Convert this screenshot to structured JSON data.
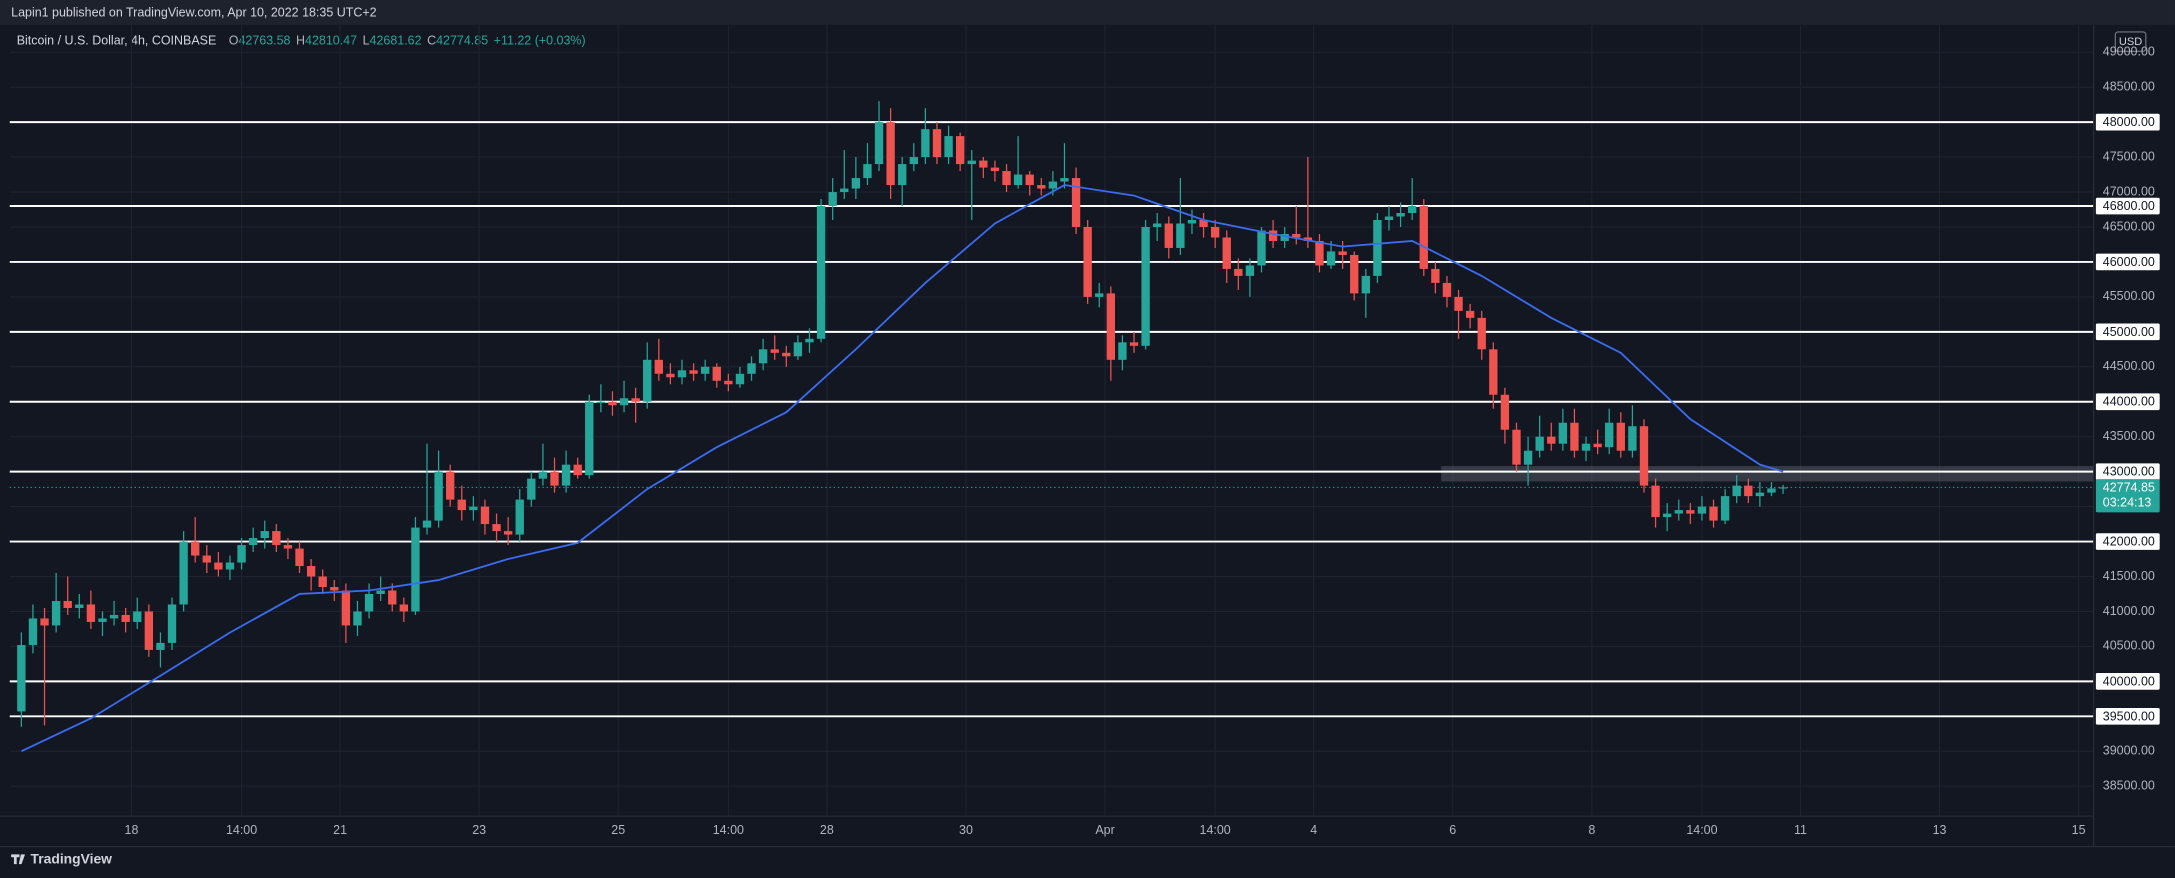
{
  "header": {
    "publisher": "Lapin1 published on TradingView.com, Apr 10, 2022 18:35 UTC+2",
    "symbol": "Bitcoin / U.S. Dollar, 4h, COINBASE",
    "change": "+11.22 (+0.03%)",
    "currency": "USD",
    "countdown": "03:24:13"
  },
  "footer": {
    "brand": "TradingView"
  },
  "chart_data": {
    "type": "candlestick",
    "x_start": "2022-03-16T10:00",
    "interval": "4h",
    "up_color": "#26a69a",
    "down_color": "#ef5350",
    "level_color": "#ffffff",
    "grid": true,
    "xlim": [
      "2022-03-16T06:00",
      "2022-04-15T05:00"
    ],
    "ylim": [
      38080,
      49390
    ],
    "xticks": [
      {
        "value": "2022-03-18",
        "label": "18"
      },
      {
        "value": "2022-03-19T14:00",
        "label": "14:00"
      },
      {
        "value": "2022-03-21",
        "label": "21"
      },
      {
        "value": "2022-03-23",
        "label": "23"
      },
      {
        "value": "2022-03-25",
        "label": "25"
      },
      {
        "value": "2022-03-26T14:00",
        "label": "14:00"
      },
      {
        "value": "2022-03-28",
        "label": "28"
      },
      {
        "value": "2022-03-30",
        "label": "30"
      },
      {
        "value": "2022-04-01",
        "label": "Apr"
      },
      {
        "value": "2022-04-02T14:00",
        "label": "14:00"
      },
      {
        "value": "2022-04-04",
        "label": "4"
      },
      {
        "value": "2022-04-06",
        "label": "6"
      },
      {
        "value": "2022-04-08",
        "label": "8"
      },
      {
        "value": "2022-04-09T14:00",
        "label": "14:00"
      },
      {
        "value": "2022-04-11",
        "label": "11"
      },
      {
        "value": "2022-04-13",
        "label": "13"
      },
      {
        "value": "2022-04-15",
        "label": "15"
      }
    ],
    "yticks": [
      {
        "value": 38500,
        "label": "38500.00"
      },
      {
        "value": 39000,
        "label": "39000.00"
      },
      {
        "value": 40500,
        "label": "40500.00"
      },
      {
        "value": 41000,
        "label": "41000.00"
      },
      {
        "value": 41500,
        "label": "41500.00"
      },
      {
        "value": 42500,
        "label": "42500.00"
      },
      {
        "value": 43500,
        "label": "43500.00"
      },
      {
        "value": 44500,
        "label": "44500.00"
      },
      {
        "value": 45500,
        "label": "45500.00"
      },
      {
        "value": 46500,
        "label": "46500.00"
      },
      {
        "value": 47000,
        "label": "47000.00"
      },
      {
        "value": 47500,
        "label": "47500.00"
      },
      {
        "value": 48500,
        "label": "48500.00"
      },
      {
        "value": 49000,
        "label": "49000.00"
      }
    ],
    "levels": [
      {
        "value": 48000,
        "label": "48000.00"
      },
      {
        "value": 46800,
        "label": "46800.00"
      },
      {
        "value": 46000,
        "label": "46000.00"
      },
      {
        "value": 45000,
        "label": "45000.00"
      },
      {
        "value": 44000,
        "label": "44000.00"
      },
      {
        "value": 43000,
        "label": "43000.00"
      },
      {
        "value": 42000,
        "label": "42000.00"
      },
      {
        "value": 40000,
        "label": "40000.00"
      },
      {
        "value": 39500,
        "label": "39500.00"
      }
    ],
    "zone": {
      "start": "2022-04-05T20:00",
      "top": 43080,
      "bottom": 42860
    },
    "ma": {
      "color": "#3b6cf2",
      "x": [
        "2022-03-16T10:00",
        "2022-03-17T10:00",
        "2022-03-18T10:00",
        "2022-03-19T10:00",
        "2022-03-20T10:00",
        "2022-03-21T10:00",
        "2022-03-22T10:00",
        "2022-03-23T10:00",
        "2022-03-24T10:00",
        "2022-03-25T10:00",
        "2022-03-26T10:00",
        "2022-03-27T10:00",
        "2022-03-28T10:00",
        "2022-03-29T10:00",
        "2022-03-30T10:00",
        "2022-03-31T10:00",
        "2022-04-01T10:00",
        "2022-04-02T10:00",
        "2022-04-03T10:00",
        "2022-04-04T10:00",
        "2022-04-05T10:00",
        "2022-04-06T10:00",
        "2022-04-07T10:00",
        "2022-04-08T10:00",
        "2022-04-09T10:00",
        "2022-04-10T10:00",
        "2022-04-10T18:00"
      ],
      "values": [
        39000,
        39470,
        40080,
        40700,
        41250,
        41300,
        41450,
        41750,
        41980,
        42750,
        43350,
        43850,
        44750,
        45700,
        46550,
        47100,
        46950,
        46600,
        46400,
        46220,
        46300,
        45800,
        45200,
        44700,
        43750,
        43100,
        43000
      ]
    },
    "candles": [
      [
        39570,
        40700,
        39350,
        40520
      ],
      [
        40520,
        41100,
        40400,
        40900
      ],
      [
        40900,
        41050,
        39370,
        40800
      ],
      [
        40800,
        41550,
        40700,
        41150
      ],
      [
        41150,
        41500,
        40950,
        41050
      ],
      [
        41050,
        41250,
        40900,
        41100
      ],
      [
        41100,
        41300,
        40750,
        40850
      ],
      [
        40850,
        41000,
        40650,
        40900
      ],
      [
        40900,
        41150,
        40800,
        40950
      ],
      [
        40950,
        41050,
        40700,
        40850
      ],
      [
        40850,
        41200,
        40750,
        41000
      ],
      [
        41000,
        41100,
        40350,
        40450
      ],
      [
        40450,
        40700,
        40200,
        40550
      ],
      [
        40550,
        41200,
        40450,
        41100
      ],
      [
        41100,
        42150,
        41000,
        42000
      ],
      [
        42000,
        42350,
        41700,
        41800
      ],
      [
        41800,
        41950,
        41550,
        41700
      ],
      [
        41700,
        41850,
        41500,
        41600
      ],
      [
        41600,
        41800,
        41450,
        41700
      ],
      [
        41700,
        42050,
        41600,
        41950
      ],
      [
        41950,
        42200,
        41850,
        42050
      ],
      [
        42050,
        42300,
        41900,
        42150
      ],
      [
        42150,
        42250,
        41850,
        41950
      ],
      [
        41950,
        42050,
        41750,
        41900
      ],
      [
        41900,
        42000,
        41550,
        41650
      ],
      [
        41650,
        41750,
        41300,
        41500
      ],
      [
        41500,
        41600,
        41250,
        41350
      ],
      [
        41350,
        41450,
        41150,
        41300
      ],
      [
        41300,
        41400,
        40550,
        40800
      ],
      [
        40800,
        41150,
        40650,
        41000
      ],
      [
        41000,
        41400,
        40900,
        41250
      ],
      [
        41250,
        41500,
        41150,
        41300
      ],
      [
        41300,
        41400,
        41000,
        41100
      ],
      [
        41100,
        41200,
        40850,
        41000
      ],
      [
        41000,
        42350,
        40950,
        42200
      ],
      [
        42200,
        43400,
        42100,
        42300
      ],
      [
        42300,
        43300,
        42200,
        43000
      ],
      [
        43000,
        43100,
        42500,
        42600
      ],
      [
        42600,
        42800,
        42300,
        42450
      ],
      [
        42450,
        42650,
        42300,
        42500
      ],
      [
        42500,
        42600,
        42100,
        42250
      ],
      [
        42250,
        42400,
        42000,
        42150
      ],
      [
        42150,
        42350,
        41950,
        42100
      ],
      [
        42100,
        42750,
        42000,
        42600
      ],
      [
        42600,
        43000,
        42500,
        42900
      ],
      [
        42900,
        43400,
        42800,
        43000
      ],
      [
        43000,
        43200,
        42700,
        42800
      ],
      [
        42800,
        43300,
        42700,
        43100
      ],
      [
        43100,
        43200,
        42900,
        42950
      ],
      [
        42950,
        44100,
        42900,
        44000
      ],
      [
        44000,
        44250,
        43850,
        44000
      ],
      [
        44000,
        44150,
        43800,
        43950
      ],
      [
        43950,
        44300,
        43850,
        44050
      ],
      [
        44050,
        44200,
        43700,
        44000
      ],
      [
        44000,
        44850,
        43900,
        44600
      ],
      [
        44600,
        44900,
        44300,
        44400
      ],
      [
        44400,
        44550,
        44250,
        44350
      ],
      [
        44350,
        44600,
        44250,
        44450
      ],
      [
        44450,
        44550,
        44300,
        44400
      ],
      [
        44400,
        44600,
        44300,
        44500
      ],
      [
        44500,
        44550,
        44200,
        44300
      ],
      [
        44300,
        44400,
        44150,
        44250
      ],
      [
        44250,
        44500,
        44200,
        44400
      ],
      [
        44400,
        44650,
        44300,
        44550
      ],
      [
        44550,
        44900,
        44450,
        44750
      ],
      [
        44750,
        44950,
        44600,
        44700
      ],
      [
        44700,
        44800,
        44500,
        44650
      ],
      [
        44650,
        44950,
        44600,
        44850
      ],
      [
        44850,
        45050,
        44700,
        44900
      ],
      [
        44900,
        46900,
        44850,
        46800
      ],
      [
        46800,
        47200,
        46600,
        47000
      ],
      [
        47000,
        47600,
        46900,
        47050
      ],
      [
        47050,
        47500,
        46900,
        47200
      ],
      [
        47200,
        47700,
        47100,
        47400
      ],
      [
        47400,
        48300,
        47300,
        48000
      ],
      [
        48000,
        48200,
        46900,
        47100
      ],
      [
        47100,
        47500,
        46800,
        47400
      ],
      [
        47400,
        47700,
        47300,
        47500
      ],
      [
        47500,
        48200,
        47400,
        47900
      ],
      [
        47900,
        48000,
        47400,
        47500
      ],
      [
        47500,
        47950,
        47400,
        47800
      ],
      [
        47800,
        47850,
        47300,
        47400
      ],
      [
        47400,
        47600,
        46600,
        47450
      ],
      [
        47450,
        47500,
        47200,
        47350
      ],
      [
        47350,
        47450,
        47150,
        47300
      ],
      [
        47300,
        47400,
        47000,
        47100
      ],
      [
        47100,
        47800,
        47050,
        47250
      ],
      [
        47250,
        47300,
        46950,
        47100
      ],
      [
        47100,
        47200,
        46950,
        47050
      ],
      [
        47050,
        47300,
        46950,
        47150
      ],
      [
        47150,
        47700,
        47050,
        47200
      ],
      [
        47200,
        47350,
        46400,
        46500
      ],
      [
        46500,
        46600,
        45400,
        45500
      ],
      [
        45500,
        45700,
        45350,
        45550
      ],
      [
        45550,
        45650,
        44300,
        44600
      ],
      [
        44600,
        44950,
        44450,
        44850
      ],
      [
        44850,
        45000,
        44700,
        44800
      ],
      [
        44800,
        46600,
        44750,
        46500
      ],
      [
        46500,
        46700,
        46300,
        46550
      ],
      [
        46550,
        46650,
        46050,
        46200
      ],
      [
        46200,
        47200,
        46100,
        46550
      ],
      [
        46550,
        46750,
        46400,
        46600
      ],
      [
        46600,
        46700,
        46350,
        46500
      ],
      [
        46500,
        46600,
        46200,
        46350
      ],
      [
        46350,
        46450,
        45700,
        45900
      ],
      [
        45900,
        46050,
        45600,
        45800
      ],
      [
        45800,
        46050,
        45500,
        45950
      ],
      [
        45950,
        46500,
        45850,
        46450
      ],
      [
        46450,
        46600,
        46200,
        46300
      ],
      [
        46300,
        46500,
        46200,
        46400
      ],
      [
        46400,
        46800,
        46250,
        46350
      ],
      [
        46350,
        47500,
        46200,
        46300
      ],
      [
        46300,
        46400,
        45850,
        45950
      ],
      [
        45950,
        46300,
        45900,
        46150
      ],
      [
        46150,
        46300,
        45900,
        46100
      ],
      [
        46100,
        46150,
        45450,
        45550
      ],
      [
        45550,
        45900,
        45200,
        45800
      ],
      [
        45800,
        46700,
        45700,
        46600
      ],
      [
        46600,
        46800,
        46450,
        46650
      ],
      [
        46650,
        46850,
        46500,
        46700
      ],
      [
        46700,
        47200,
        46600,
        46800
      ],
      [
        46800,
        46900,
        45800,
        45900
      ],
      [
        45900,
        46000,
        45550,
        45700
      ],
      [
        45700,
        45800,
        45350,
        45500
      ],
      [
        45500,
        45600,
        44900,
        45300
      ],
      [
        45300,
        45400,
        45050,
        45200
      ],
      [
        45200,
        45300,
        44600,
        44750
      ],
      [
        44750,
        44850,
        43900,
        44100
      ],
      [
        44100,
        44200,
        43400,
        43600
      ],
      [
        43600,
        43700,
        43000,
        43100
      ],
      [
        43100,
        43500,
        42800,
        43300
      ],
      [
        43300,
        43800,
        43200,
        43500
      ],
      [
        43500,
        43700,
        43300,
        43400
      ],
      [
        43400,
        43900,
        43300,
        43700
      ],
      [
        43700,
        43900,
        43200,
        43300
      ],
      [
        43300,
        43500,
        43150,
        43400
      ],
      [
        43400,
        43600,
        43250,
        43350
      ],
      [
        43350,
        43900,
        43250,
        43700
      ],
      [
        43700,
        43850,
        43200,
        43300
      ],
      [
        43300,
        43950,
        43200,
        43650
      ],
      [
        43650,
        43750,
        42700,
        42800
      ],
      [
        42800,
        42900,
        42200,
        42350
      ],
      [
        42350,
        42550,
        42150,
        42400
      ],
      [
        42400,
        42600,
        42300,
        42450
      ],
      [
        42450,
        42550,
        42250,
        42400
      ],
      [
        42400,
        42650,
        42300,
        42500
      ],
      [
        42500,
        42600,
        42200,
        42300
      ],
      [
        42300,
        42750,
        42250,
        42650
      ],
      [
        42650,
        42950,
        42550,
        42800
      ],
      [
        42800,
        42900,
        42550,
        42650
      ],
      [
        42650,
        42850,
        42500,
        42700
      ],
      [
        42700,
        42850,
        42650,
        42760
      ],
      [
        42763.58,
        42810.47,
        42681.62,
        42774.85
      ]
    ]
  }
}
